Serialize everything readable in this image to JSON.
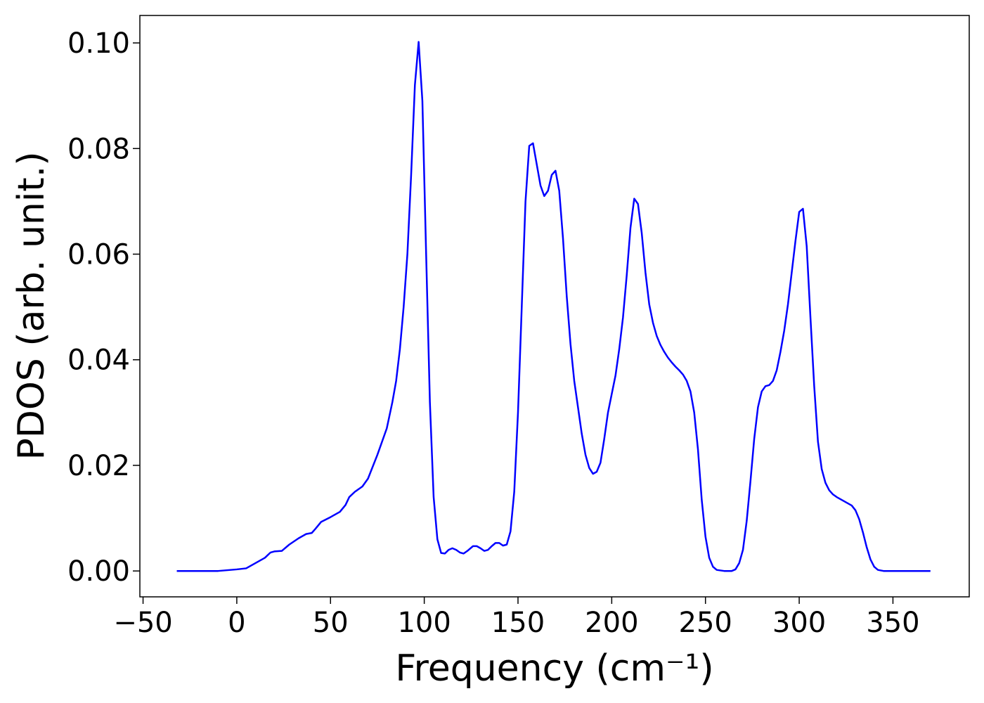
{
  "chart_data": {
    "type": "line",
    "xlabel": "Frequency (cm⁻¹)",
    "ylabel": "PDOS (arb. unit.)",
    "color": "#0000ff",
    "xlim": [
      -51.7,
      390.7
    ],
    "ylim": [
      -0.0049,
      0.1052
    ],
    "xticks": [
      {
        "value": -50,
        "label": "−50"
      },
      0,
      50,
      100,
      150,
      200,
      250,
      300,
      350
    ],
    "yticks": [
      {
        "value": 0,
        "label": "0.00"
      },
      {
        "value": 0.02,
        "label": "0.02"
      },
      {
        "value": 0.04,
        "label": "0.04"
      },
      {
        "value": 0.06,
        "label": "0.06"
      },
      {
        "value": 0.08,
        "label": "0.08"
      },
      {
        "value": 0.1,
        "label": "0.10"
      }
    ],
    "grid": false,
    "x": [
      -32,
      -10,
      0,
      5,
      10,
      15,
      18,
      20,
      24,
      28,
      33,
      37,
      40,
      42,
      45,
      50,
      55,
      58,
      60,
      63,
      67,
      70,
      75,
      80,
      83,
      85,
      87,
      89,
      91,
      93,
      95,
      97,
      99,
      101,
      103,
      105,
      107,
      109,
      111,
      113,
      115,
      117,
      119,
      121,
      123,
      126,
      128,
      130,
      132,
      134,
      136,
      138,
      140,
      142,
      144,
      146,
      148,
      150,
      152,
      154,
      156,
      158,
      160,
      162,
      164,
      166,
      168,
      170,
      172,
      174,
      176,
      178,
      180,
      182,
      184,
      186,
      188,
      190,
      192,
      194,
      196,
      198,
      200,
      202,
      204,
      206,
      208,
      210,
      212,
      214,
      216,
      218,
      220,
      222,
      224,
      226,
      228,
      230,
      232,
      234,
      236,
      238,
      240,
      242,
      244,
      246,
      248,
      250,
      252,
      254,
      256,
      260,
      264,
      266,
      268,
      270,
      272,
      274,
      276,
      278,
      280,
      282,
      284,
      286,
      288,
      290,
      292,
      294,
      296,
      298,
      300,
      302,
      304,
      306,
      308,
      310,
      312,
      314,
      316,
      318,
      320,
      322,
      324,
      326,
      328,
      330,
      332,
      334,
      336,
      338,
      340,
      342,
      345,
      370
    ],
    "values": [
      0,
      0,
      0.0003,
      0.0005,
      0.0015,
      0.0025,
      0.0035,
      0.0037,
      0.0038,
      0.005,
      0.0062,
      0.007,
      0.0072,
      0.008,
      0.0093,
      0.0102,
      0.0112,
      0.0125,
      0.014,
      0.015,
      0.016,
      0.0175,
      0.022,
      0.027,
      0.032,
      0.036,
      0.042,
      0.05,
      0.06,
      0.075,
      0.092,
      0.1002,
      0.089,
      0.06,
      0.032,
      0.014,
      0.006,
      0.0034,
      0.0033,
      0.004,
      0.0043,
      0.004,
      0.0035,
      0.0033,
      0.0038,
      0.0047,
      0.0047,
      0.0043,
      0.0038,
      0.004,
      0.0047,
      0.0053,
      0.0053,
      0.0048,
      0.005,
      0.0075,
      0.015,
      0.03,
      0.05,
      0.07,
      0.0805,
      0.081,
      0.077,
      0.073,
      0.071,
      0.072,
      0.075,
      0.0758,
      0.072,
      0.063,
      0.052,
      0.043,
      0.036,
      0.031,
      0.026,
      0.022,
      0.0195,
      0.0184,
      0.0188,
      0.0205,
      0.025,
      0.03,
      0.0335,
      0.037,
      0.042,
      0.048,
      0.056,
      0.065,
      0.0705,
      0.0695,
      0.064,
      0.0565,
      0.0505,
      0.047,
      0.0445,
      0.0428,
      0.0415,
      0.0404,
      0.0395,
      0.0387,
      0.038,
      0.0372,
      0.036,
      0.034,
      0.03,
      0.023,
      0.0135,
      0.0065,
      0.0025,
      0.0008,
      0.0002,
      0,
      0,
      0.0003,
      0.0015,
      0.004,
      0.0095,
      0.017,
      0.025,
      0.031,
      0.034,
      0.035,
      0.0352,
      0.036,
      0.038,
      0.0415,
      0.0455,
      0.0505,
      0.0565,
      0.0625,
      0.068,
      0.0686,
      0.0615,
      0.048,
      0.035,
      0.0245,
      0.0193,
      0.0167,
      0.0153,
      0.0145,
      0.014,
      0.0136,
      0.0132,
      0.0128,
      0.0124,
      0.0115,
      0.0098,
      0.0073,
      0.0045,
      0.0022,
      0.0008,
      0.0002,
      0,
      0
    ]
  }
}
